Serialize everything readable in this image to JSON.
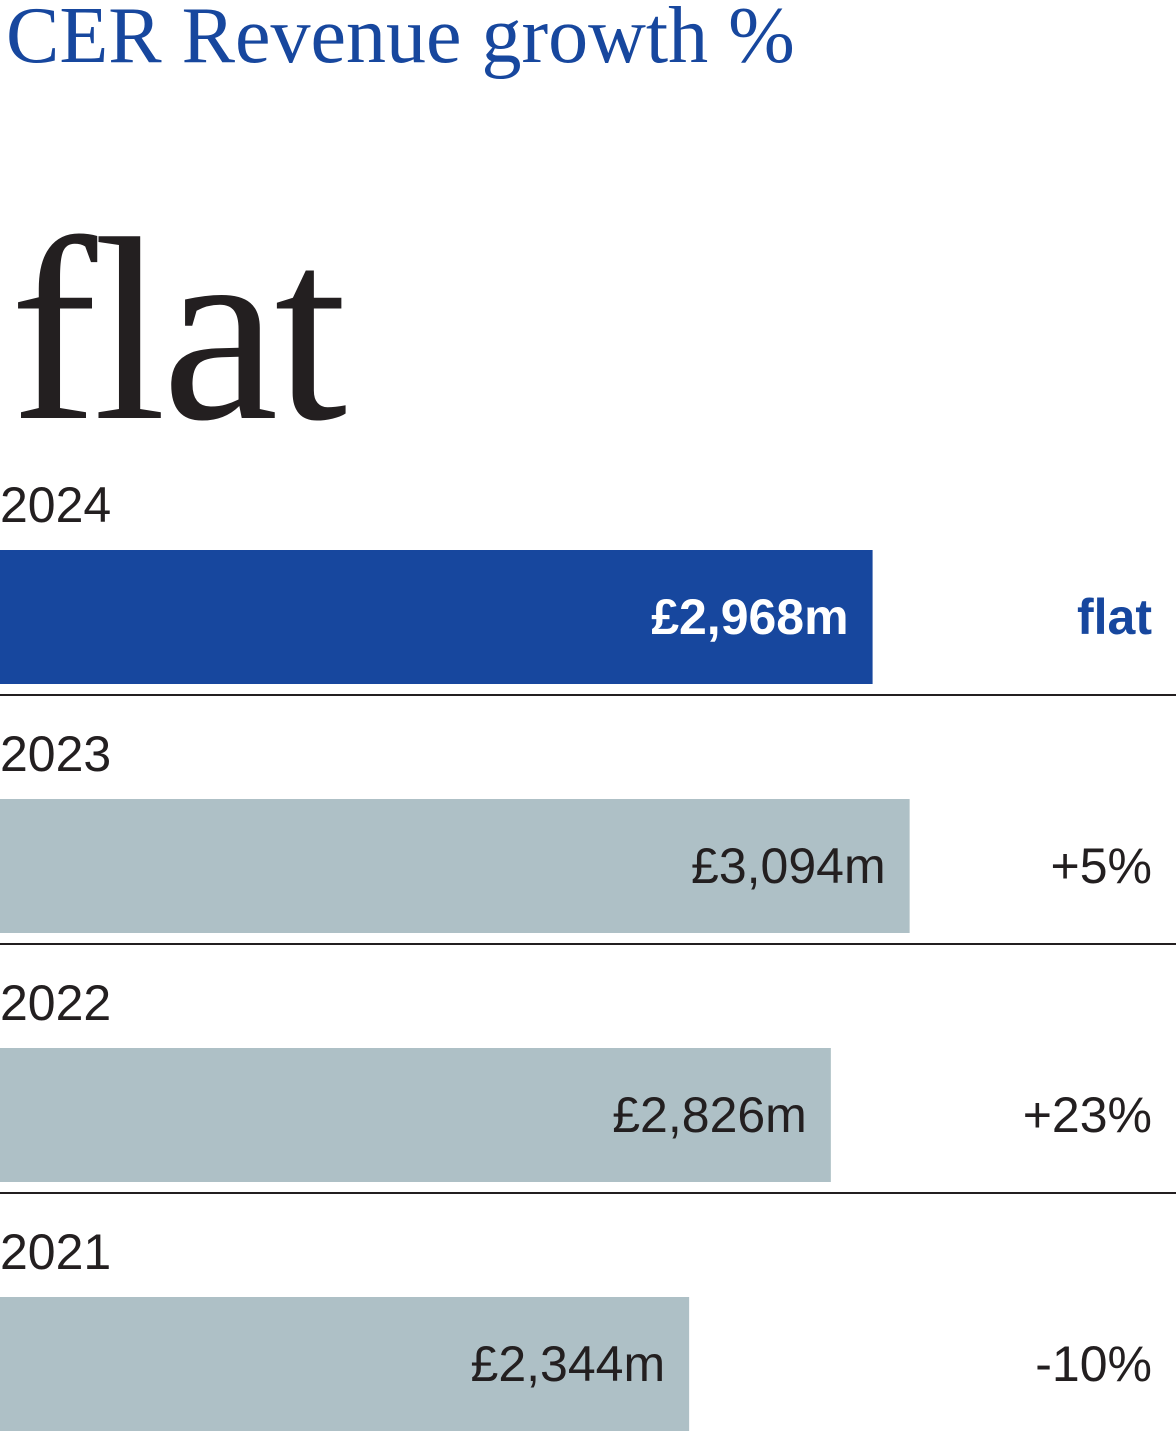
{
  "title": "CER Revenue growth %",
  "headline": "flat",
  "colors": {
    "accent": "#17479e",
    "bar_muted": "#aec0c6",
    "text": "#231f20",
    "divider": "#231f20"
  },
  "chart_data": {
    "type": "bar",
    "orientation": "horizontal",
    "title": "CER Revenue growth %",
    "categories": [
      "2024",
      "2023",
      "2022",
      "2021"
    ],
    "values": [
      2968,
      3094,
      2826,
      2344
    ],
    "value_labels": [
      "£2,968m",
      "£3,094m",
      "£2,826m",
      "£2,344m"
    ],
    "growth_labels": [
      "flat",
      "+5%",
      "+23%",
      "-10%"
    ],
    "highlight_index": 0,
    "xlim": [
      0,
      4000
    ],
    "grid": false,
    "legend": "none"
  }
}
